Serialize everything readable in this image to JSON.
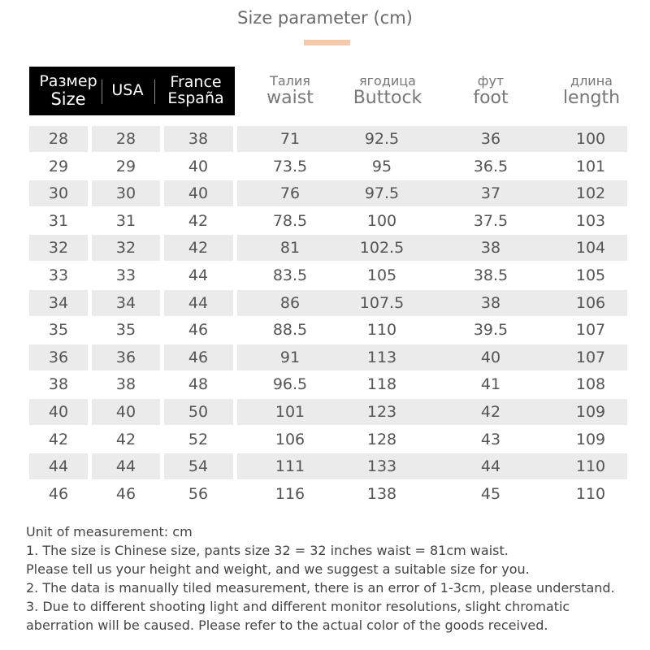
{
  "title": "Size parameter (cm)",
  "accent_color": "#f6c9ab",
  "headers": [
    {
      "ru": "Размер",
      "en": "Size"
    },
    {
      "en": "USA"
    },
    {
      "ru": "France",
      "en": "España"
    },
    {
      "ru": "Талия",
      "en": "waist"
    },
    {
      "ru": "ягодица",
      "en": "Buttock"
    },
    {
      "ru": "фут",
      "en": "foot"
    },
    {
      "ru": "длина",
      "en": "length"
    }
  ],
  "rows": [
    [
      "28",
      "28",
      "38",
      "71",
      "92.5",
      "36",
      "100"
    ],
    [
      "29",
      "29",
      "40",
      "73.5",
      "95",
      "36.5",
      "101"
    ],
    [
      "30",
      "30",
      "40",
      "76",
      "97.5",
      "37",
      "102"
    ],
    [
      "31",
      "31",
      "42",
      "78.5",
      "100",
      "37.5",
      "103"
    ],
    [
      "32",
      "32",
      "42",
      "81",
      "102.5",
      "38",
      "104"
    ],
    [
      "33",
      "33",
      "44",
      "83.5",
      "105",
      "38.5",
      "105"
    ],
    [
      "34",
      "34",
      "44",
      "86",
      "107.5",
      "38",
      "106"
    ],
    [
      "35",
      "35",
      "46",
      "88.5",
      "110",
      "39.5",
      "107"
    ],
    [
      "36",
      "36",
      "46",
      "91",
      "113",
      "40",
      "107"
    ],
    [
      "38",
      "38",
      "48",
      "96.5",
      "118",
      "41",
      "108"
    ],
    [
      "40",
      "40",
      "50",
      "101",
      "123",
      "42",
      "109"
    ],
    [
      "42",
      "42",
      "52",
      "106",
      "128",
      "43",
      "109"
    ],
    [
      "44",
      "44",
      "54",
      "111",
      "133",
      "44",
      "110"
    ],
    [
      "46",
      "46",
      "56",
      "116",
      "138",
      "45",
      "110"
    ]
  ],
  "notes": [
    "Unit of measurement: cm",
    "1. The size is Chinese size, pants size 32 = 32 inches waist = 81cm waist.",
    "Please tell us your height and weight, and we suggest a suitable size for you.",
    "2. The data is manually tiled measurement, there is an error of 1-3cm, please understand.",
    "3. Due to different shooting light and different monitor resolutions, slight chromatic",
    "aberration will be caused. Please refer to the actual color of the goods received."
  ]
}
